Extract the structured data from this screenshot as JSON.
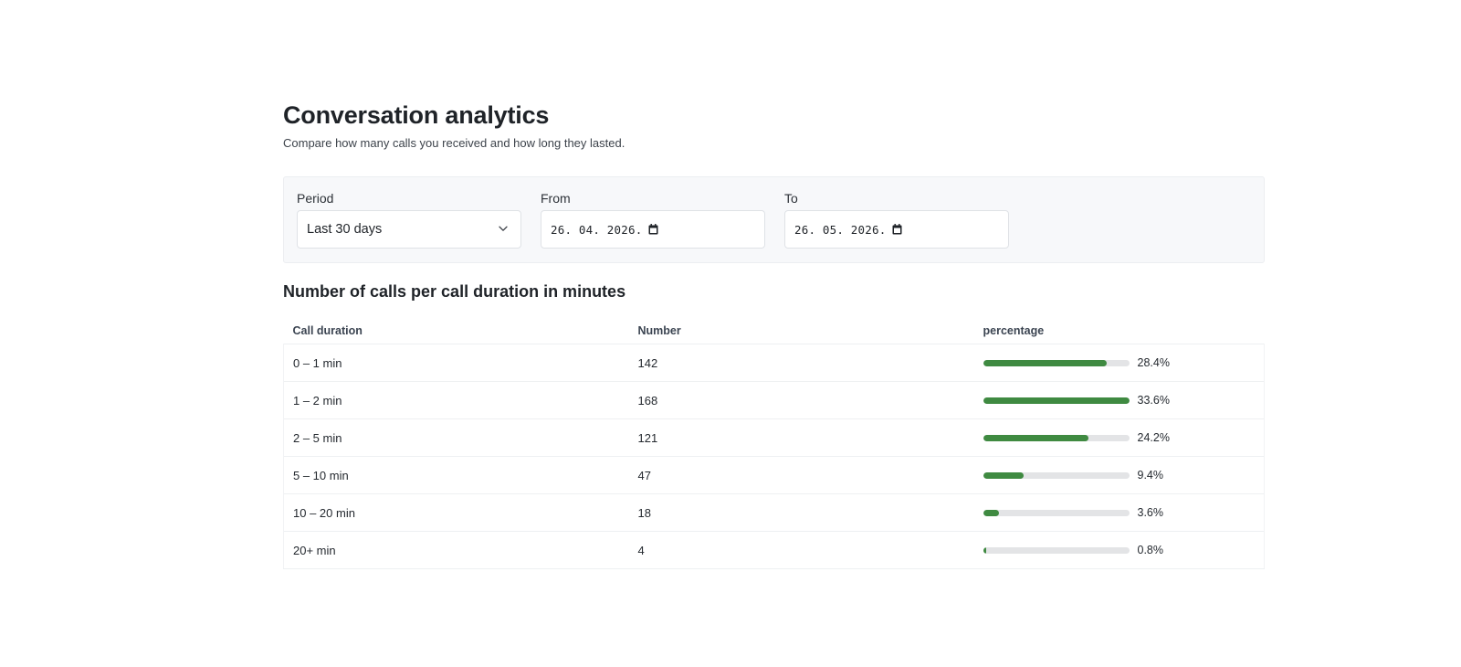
{
  "header": {
    "title": "Conversation analytics",
    "subtitle": "Compare how many calls you received and how long they lasted."
  },
  "filters": {
    "period": {
      "label": "Period",
      "value": "Last 30 days",
      "icon": "chevron-down-icon"
    },
    "from": {
      "label": "From",
      "value": "26. 04. 2026.",
      "icon": "calendar-icon"
    },
    "to": {
      "label": "To",
      "value": "26. 05. 2026.",
      "icon": "calendar-icon"
    }
  },
  "section": {
    "title": "Number of calls per call duration in minutes"
  },
  "table": {
    "columns": [
      "Call duration",
      "Number",
      "percentage"
    ],
    "rows": [
      {
        "duration": "0 – 1 min",
        "number": "142",
        "percentage": "28.4%",
        "share": 0.284
      },
      {
        "duration": "1 – 2 min",
        "number": "168",
        "percentage": "33.6%",
        "share": 0.336
      },
      {
        "duration": "2 – 5 min",
        "number": "121",
        "percentage": "24.2%",
        "share": 0.242
      },
      {
        "duration": "5 – 10 min",
        "number": "47",
        "percentage": "9.4%",
        "share": 0.094
      },
      {
        "duration": "10 – 20 min",
        "number": "18",
        "percentage": "3.6%",
        "share": 0.036
      },
      {
        "duration": "20+ min",
        "number": "4",
        "percentage": "0.8%",
        "share": 0.008
      }
    ],
    "bar_scale_max": 0.336
  },
  "colors": {
    "bar_fill": "#3f8a41",
    "bar_track": "#e3e4e6",
    "panel_background": "#f7f8fa"
  }
}
